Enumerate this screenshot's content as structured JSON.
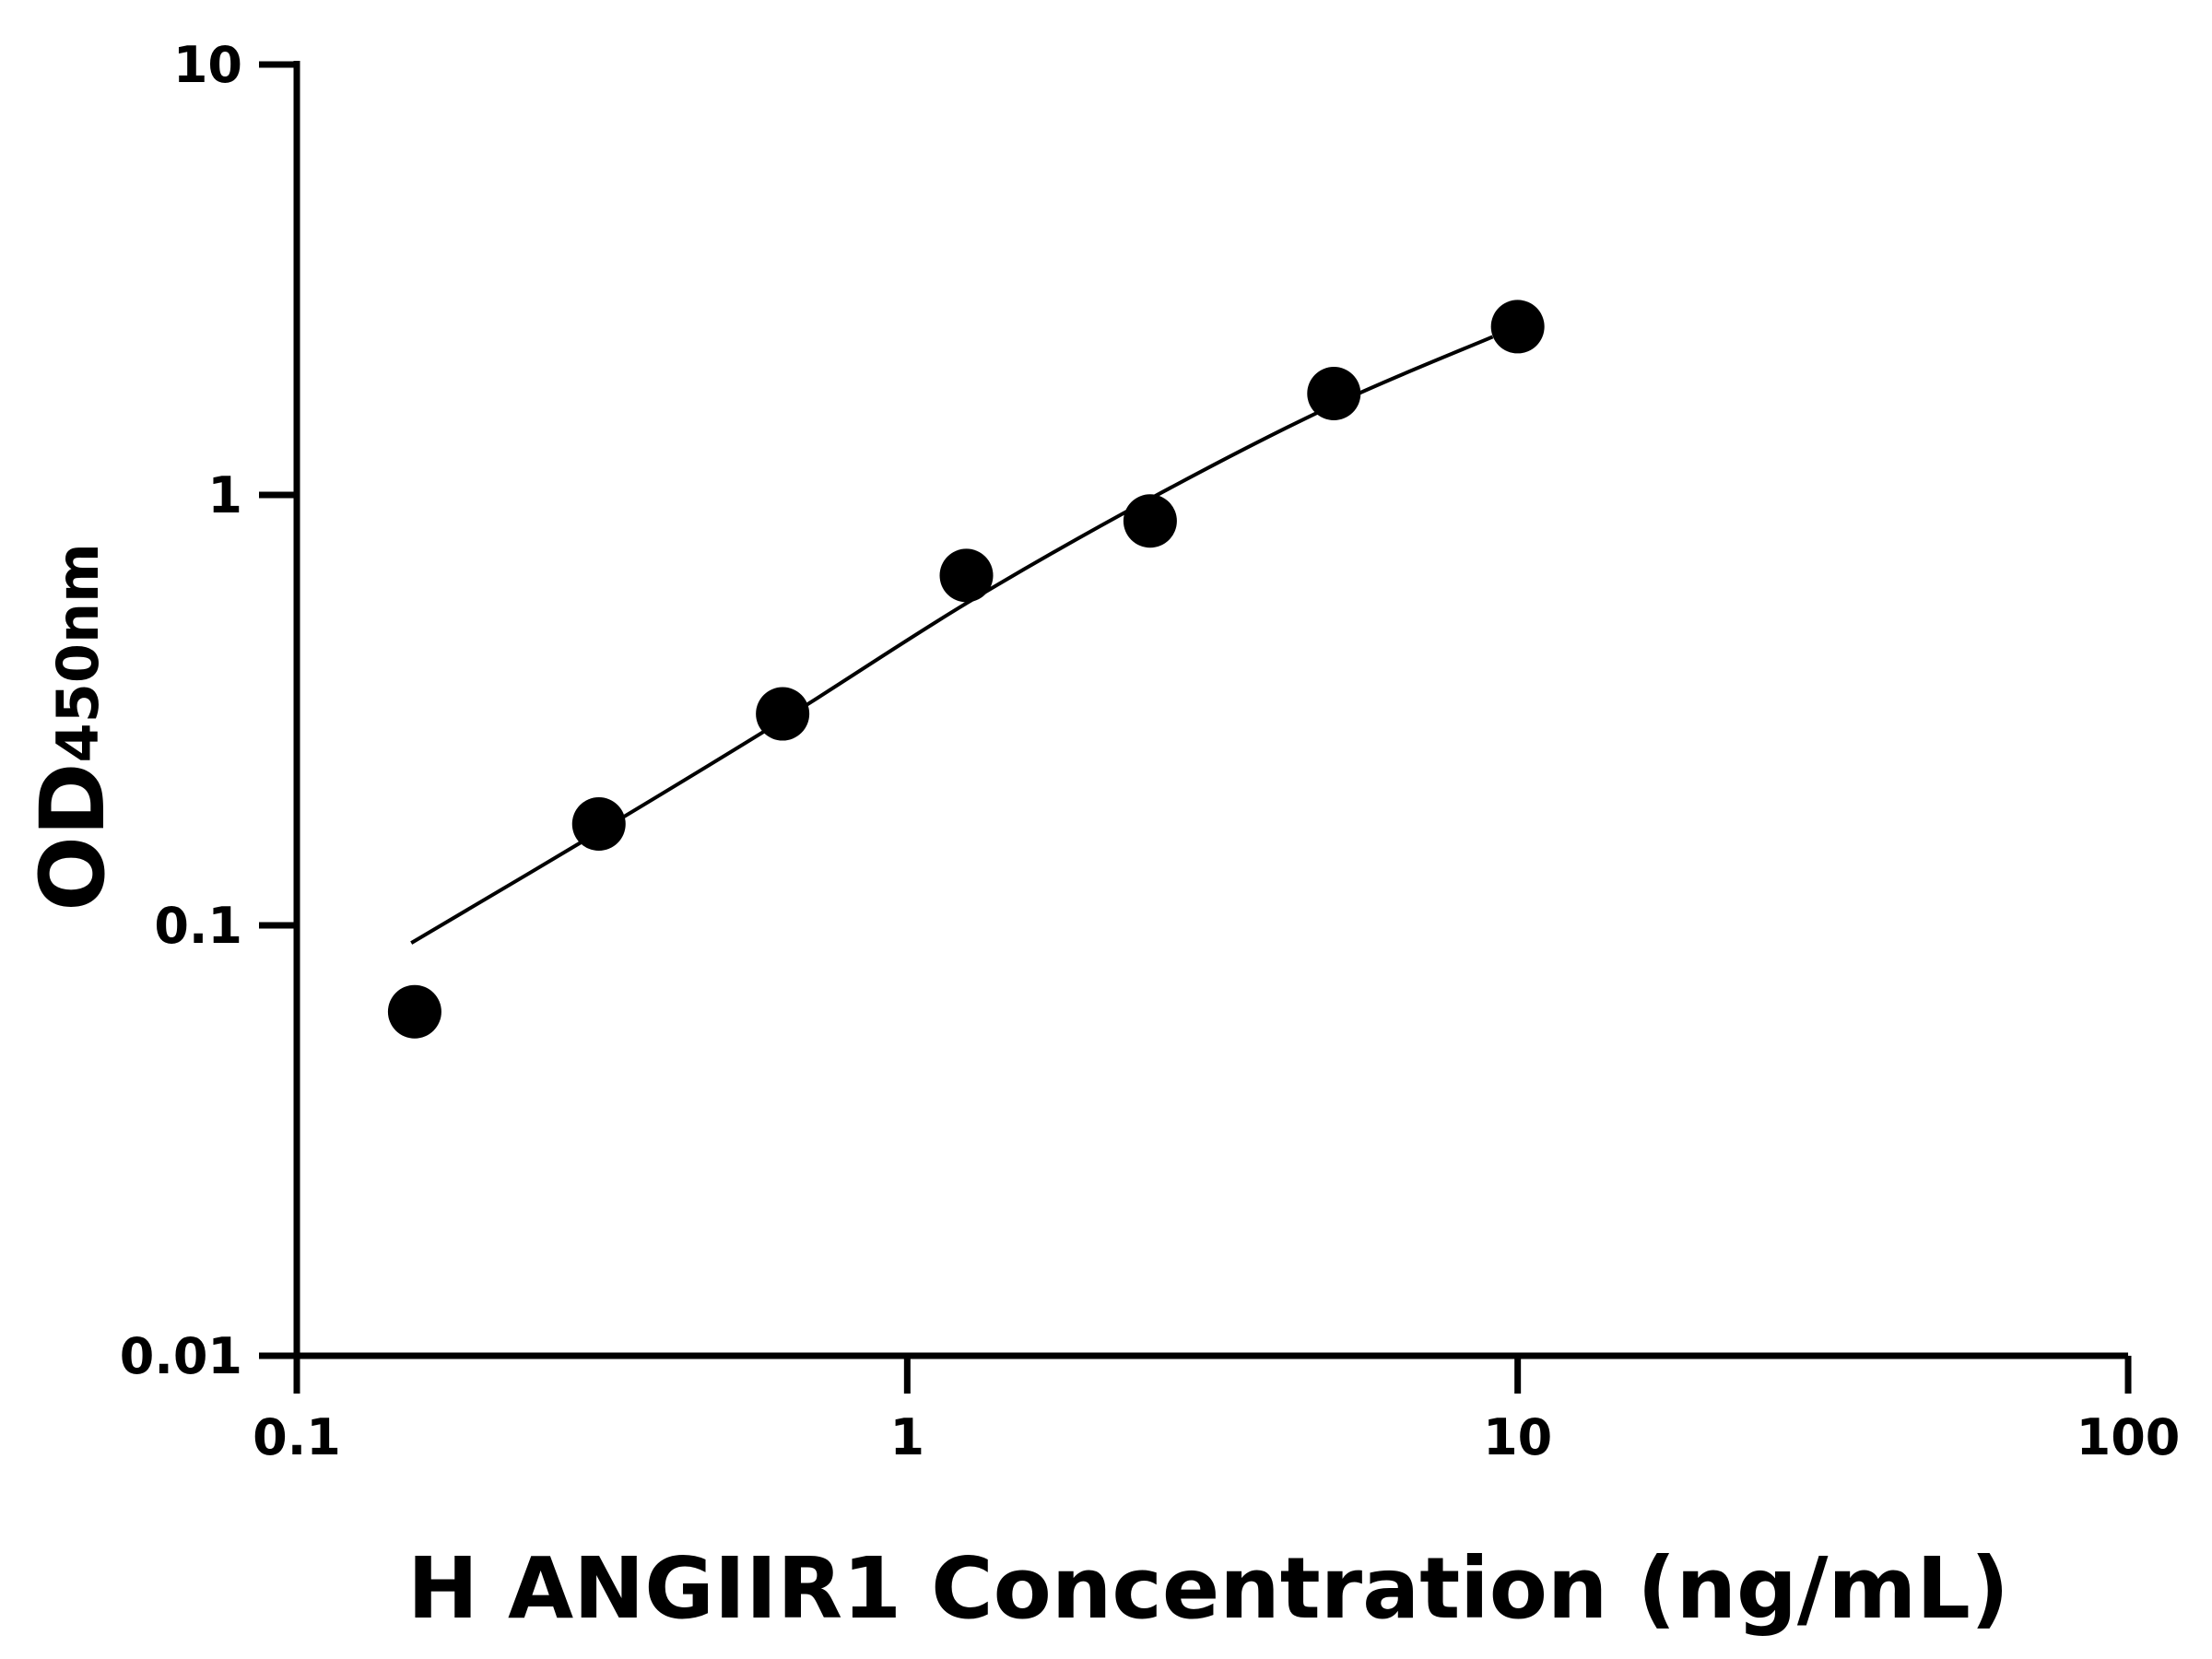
{
  "chart_data": {
    "type": "scatter",
    "title": "",
    "xlabel": "H ANGIIR1 Concentration (ng/mL)",
    "ylabel_main": "OD",
    "ylabel_sub": "450nm",
    "xscale": "log",
    "yscale": "log",
    "xlim": [
      0.1,
      100
    ],
    "ylim": [
      0.01,
      10
    ],
    "grid": false,
    "xticks": [
      0.1,
      1,
      10,
      100
    ],
    "xtick_labels": [
      "0.1",
      "1",
      "10",
      "100"
    ],
    "yticks": [
      0.01,
      0.1,
      1,
      10
    ],
    "ytick_labels": [
      "0.01",
      "0.1",
      "1",
      "10"
    ],
    "points": {
      "x": [
        0.156,
        0.3125,
        0.625,
        1.25,
        2.5,
        5,
        10
      ],
      "y": [
        0.063,
        0.172,
        0.31,
        0.65,
        0.87,
        1.72,
        2.46
      ]
    },
    "fit_curve": {
      "x": [
        0.154,
        0.3125,
        0.625,
        1.25,
        2.5,
        5,
        9.1
      ],
      "y": [
        0.091,
        0.165,
        0.3,
        0.56,
        0.98,
        1.62,
        2.33
      ]
    },
    "colors": {
      "points": "#000000",
      "line": "#000000",
      "axes": "#000000"
    }
  }
}
